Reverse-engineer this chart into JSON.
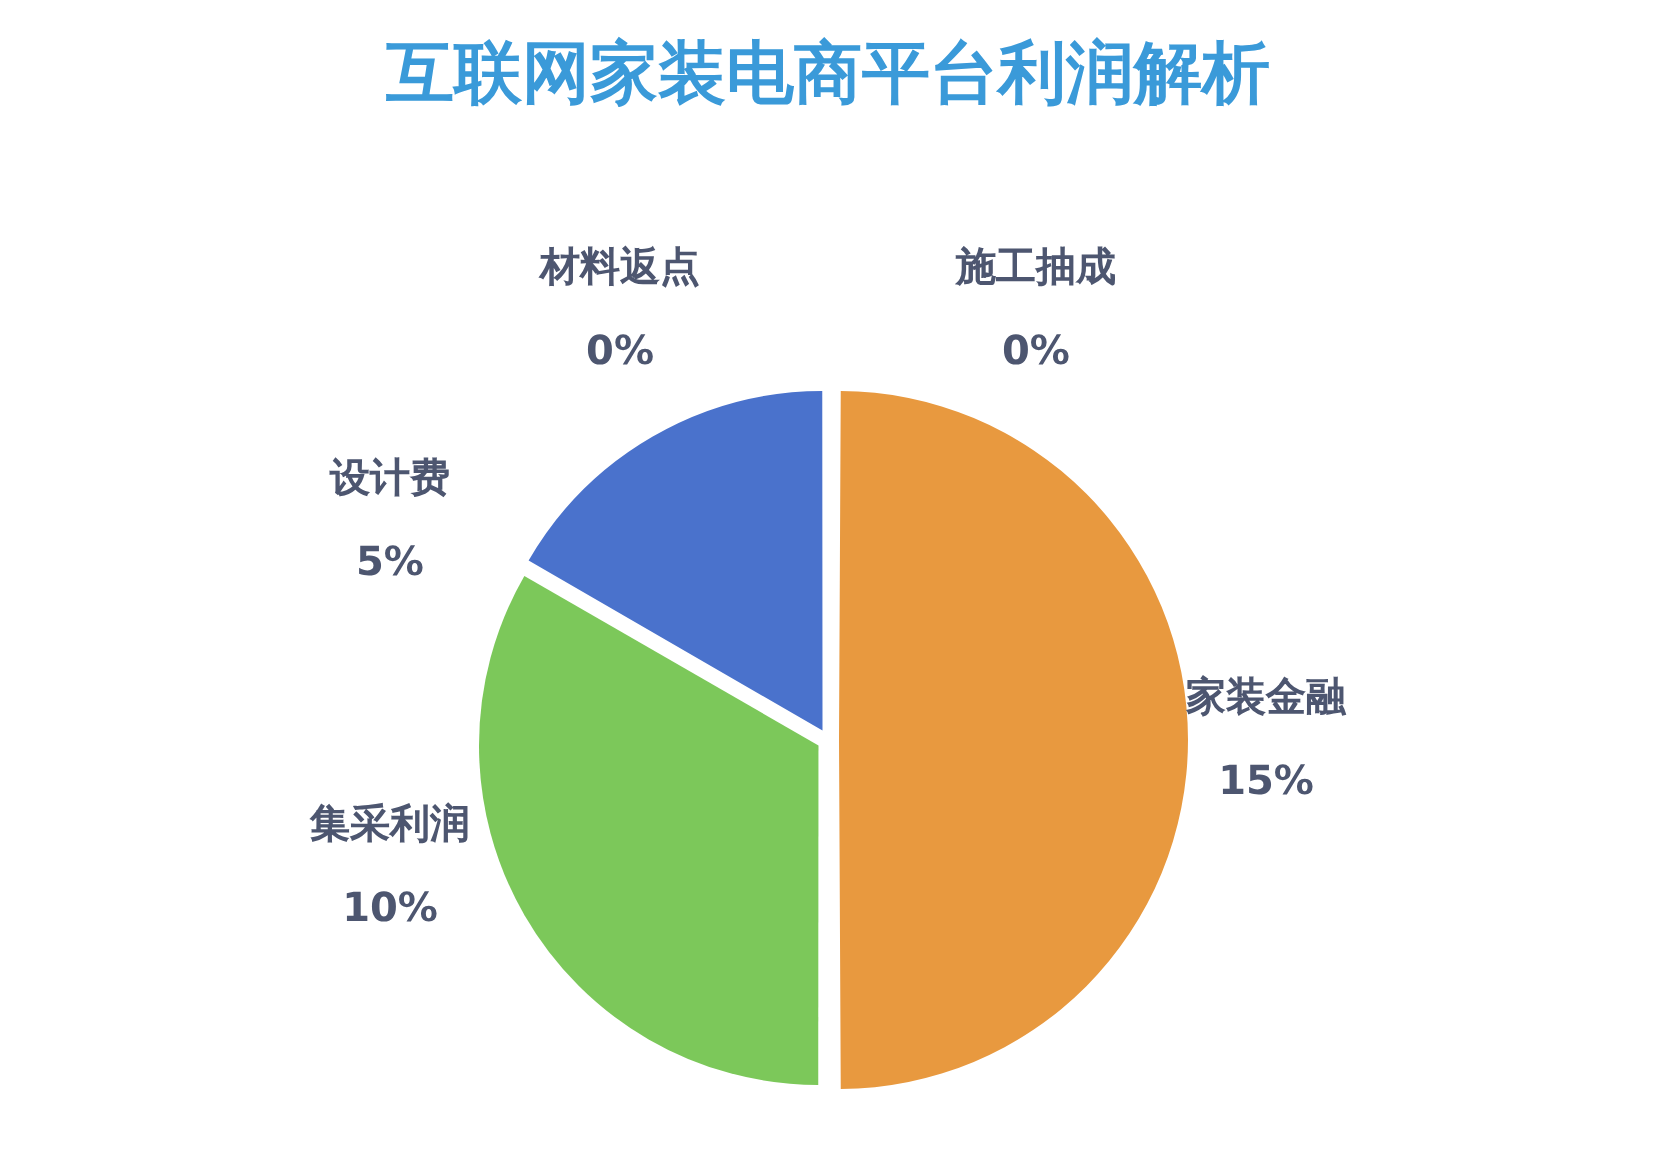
{
  "chart_data": {
    "type": "pie",
    "title": "互联网家装电商平台利润解析",
    "categories": [
      "施工抽成",
      "家装金融",
      "集采利润",
      "设计费",
      "材料返点"
    ],
    "values": [
      0,
      15,
      10,
      5,
      0
    ],
    "value_labels": [
      "0%",
      "15%",
      "10%",
      "5%",
      "0%"
    ],
    "colors": [
      "#a5a5a5",
      "#e8993f",
      "#7cc85a",
      "#4a72cc",
      "#ffc000"
    ],
    "legend": false
  }
}
